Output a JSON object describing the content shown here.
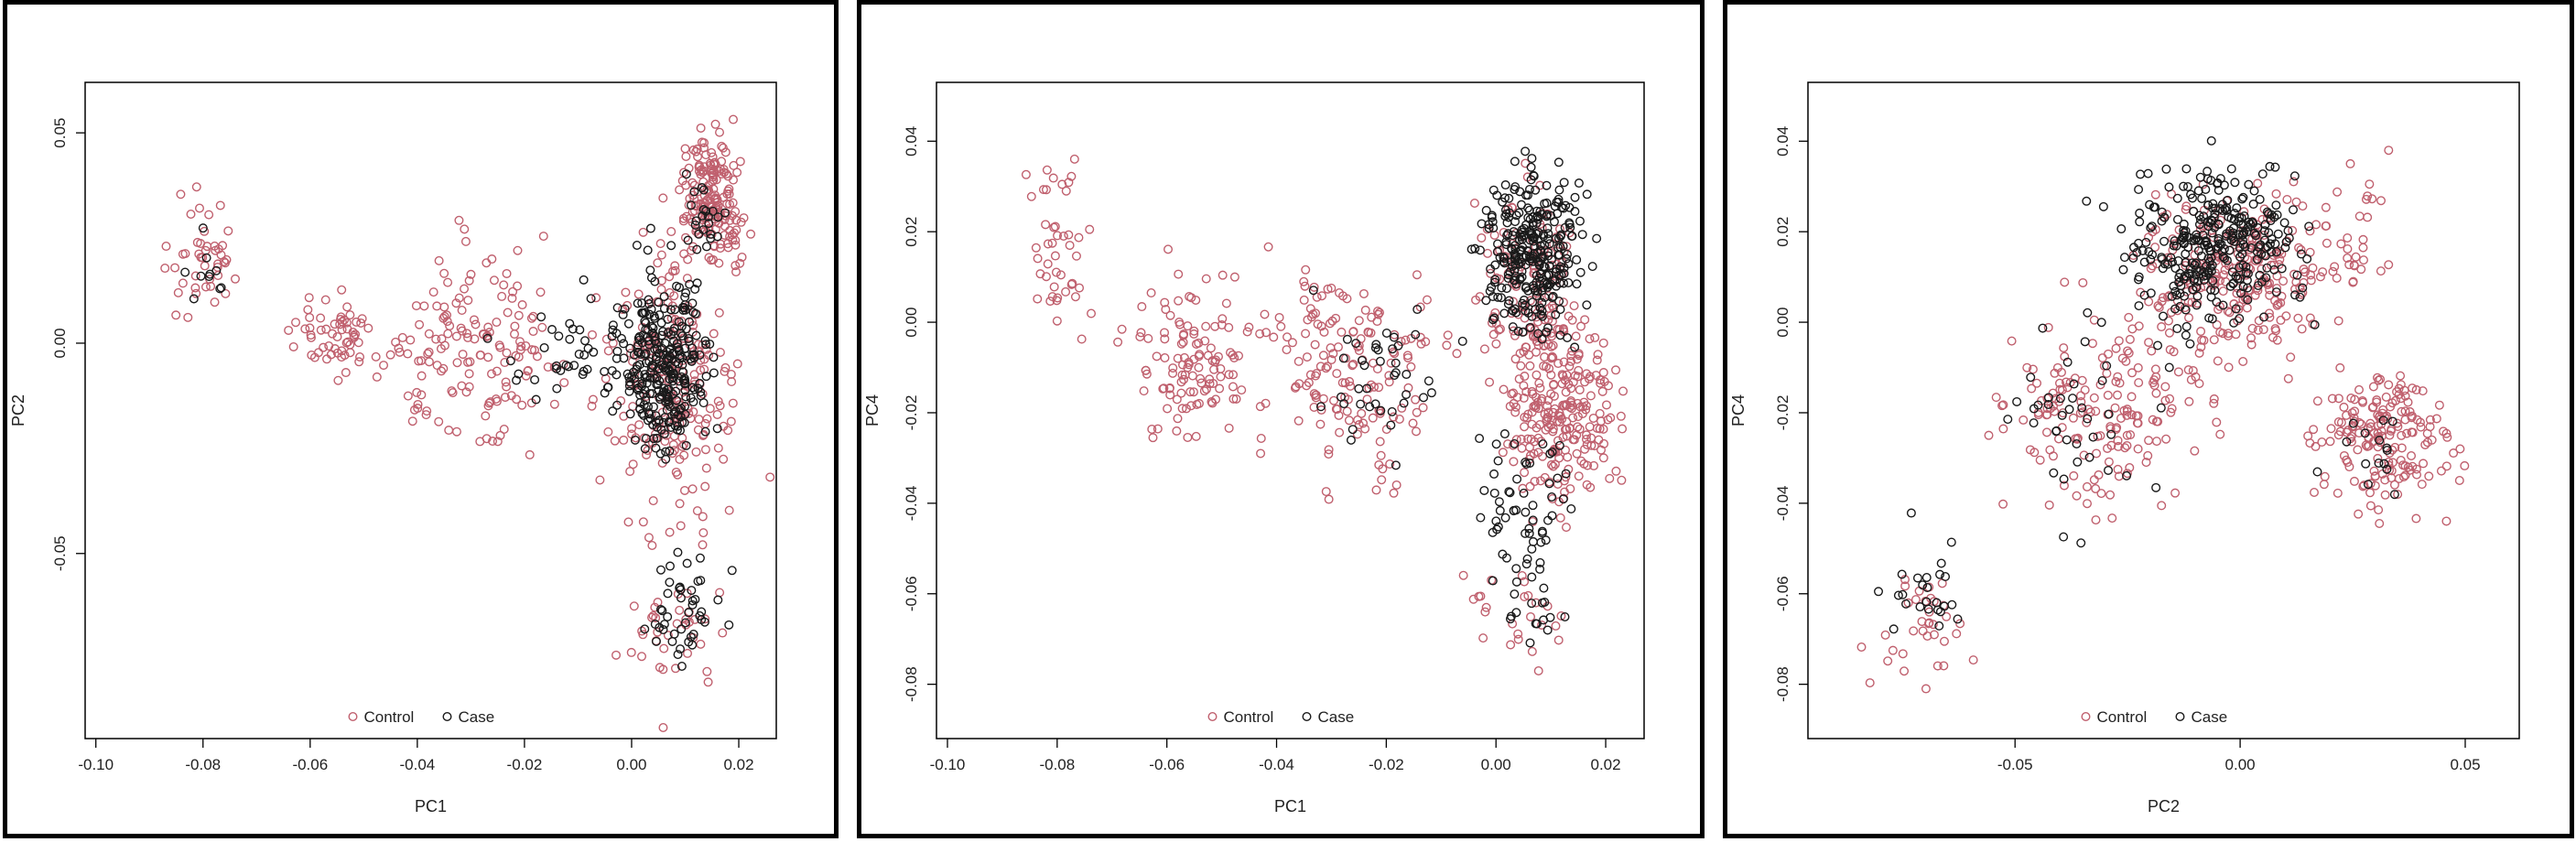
{
  "chart_data": [
    {
      "type": "scatter",
      "xlabel": "PC1",
      "ylabel": "PC2",
      "xlim": [
        -0.102,
        0.027
      ],
      "ylim": [
        -0.094,
        0.062
      ],
      "xticks": [
        -0.1,
        -0.08,
        -0.06,
        -0.04,
        -0.02,
        0.0,
        0.02
      ],
      "xtick_labels": [
        "-0.10",
        "-0.08",
        "-0.06",
        "-0.04",
        "-0.02",
        "0.00",
        "0.02"
      ],
      "yticks": [
        -0.05,
        0.0,
        0.05
      ],
      "ytick_labels": [
        "-0.05",
        "0.00",
        "0.05"
      ],
      "legend": {
        "placement": "bottom-center",
        "entries": [
          "Control",
          "Case"
        ]
      },
      "grid": false,
      "series": [
        {
          "name": "Control",
          "color": "#c0606e",
          "marker": "circle",
          "clusters": [
            {
              "cx": -0.08,
              "cy": 0.02,
              "sx": 0.005,
              "sy": 0.01,
              "n": 45
            },
            {
              "cx": -0.055,
              "cy": 0.002,
              "sx": 0.006,
              "sy": 0.006,
              "n": 60
            },
            {
              "cx": -0.03,
              "cy": -0.002,
              "sx": 0.012,
              "sy": 0.016,
              "n": 150
            },
            {
              "cx": 0.015,
              "cy": 0.035,
              "sx": 0.004,
              "sy": 0.01,
              "n": 180
            },
            {
              "cx": 0.008,
              "cy": -0.01,
              "sx": 0.008,
              "sy": 0.022,
              "n": 230
            },
            {
              "cx": 0.007,
              "cy": -0.07,
              "sx": 0.007,
              "sy": 0.01,
              "n": 35
            }
          ]
        },
        {
          "name": "Case",
          "color": "#1a1a1a",
          "marker": "circle",
          "clusters": [
            {
              "cx": 0.006,
              "cy": -0.005,
              "sx": 0.006,
              "sy": 0.015,
              "n": 290
            },
            {
              "cx": -0.01,
              "cy": -0.003,
              "sx": 0.009,
              "sy": 0.01,
              "n": 40
            },
            {
              "cx": 0.01,
              "cy": -0.065,
              "sx": 0.005,
              "sy": 0.01,
              "n": 45
            },
            {
              "cx": -0.08,
              "cy": 0.016,
              "sx": 0.003,
              "sy": 0.005,
              "n": 10
            },
            {
              "cx": 0.013,
              "cy": 0.03,
              "sx": 0.003,
              "sy": 0.008,
              "n": 25
            }
          ]
        }
      ]
    },
    {
      "type": "scatter",
      "xlabel": "PC1",
      "ylabel": "PC4",
      "xlim": [
        -0.102,
        0.027
      ],
      "ylim": [
        -0.092,
        0.053
      ],
      "xticks": [
        -0.1,
        -0.08,
        -0.06,
        -0.04,
        -0.02,
        0.0,
        0.02
      ],
      "xtick_labels": [
        "-0.10",
        "-0.08",
        "-0.06",
        "-0.04",
        "-0.02",
        "0.00",
        "0.02"
      ],
      "yticks": [
        -0.08,
        -0.06,
        -0.04,
        -0.02,
        0.0,
        0.02,
        0.04
      ],
      "ytick_labels": [
        "-0.08",
        "-0.06",
        "-0.04",
        "-0.02",
        "0.00",
        "0.02",
        "0.04"
      ],
      "legend": {
        "placement": "bottom-center",
        "entries": [
          "Control",
          "Case"
        ]
      },
      "grid": false,
      "series": [
        {
          "name": "Control",
          "color": "#c0606e",
          "marker": "circle",
          "clusters": [
            {
              "cx": -0.079,
              "cy": 0.015,
              "sx": 0.004,
              "sy": 0.014,
              "n": 45
            },
            {
              "cx": -0.055,
              "cy": -0.008,
              "sx": 0.008,
              "sy": 0.012,
              "n": 120
            },
            {
              "cx": -0.025,
              "cy": -0.01,
              "sx": 0.012,
              "sy": 0.015,
              "n": 160
            },
            {
              "cx": 0.012,
              "cy": -0.02,
              "sx": 0.007,
              "sy": 0.015,
              "n": 250
            },
            {
              "cx": 0.006,
              "cy": 0.01,
              "sx": 0.006,
              "sy": 0.015,
              "n": 120
            },
            {
              "cx": 0.005,
              "cy": -0.065,
              "sx": 0.006,
              "sy": 0.008,
              "n": 25
            }
          ]
        },
        {
          "name": "Case",
          "color": "#1a1a1a",
          "marker": "circle",
          "clusters": [
            {
              "cx": 0.007,
              "cy": 0.015,
              "sx": 0.006,
              "sy": 0.012,
              "n": 300
            },
            {
              "cx": 0.005,
              "cy": -0.04,
              "sx": 0.006,
              "sy": 0.012,
              "n": 60
            },
            {
              "cx": -0.02,
              "cy": -0.01,
              "sx": 0.01,
              "sy": 0.015,
              "n": 40
            },
            {
              "cx": 0.008,
              "cy": -0.065,
              "sx": 0.004,
              "sy": 0.006,
              "n": 15
            }
          ]
        }
      ]
    },
    {
      "type": "scatter",
      "xlabel": "PC2",
      "ylabel": "PC4",
      "xlim": [
        -0.096,
        0.062
      ],
      "ylim": [
        -0.092,
        0.053
      ],
      "xticks": [
        -0.05,
        0.0,
        0.05
      ],
      "xtick_labels": [
        "-0.05",
        "0.00",
        "0.05"
      ],
      "yticks": [
        -0.08,
        -0.06,
        -0.04,
        -0.02,
        0.0,
        0.02,
        0.04
      ],
      "ytick_labels": [
        "-0.08",
        "-0.06",
        "-0.04",
        "-0.02",
        "0.00",
        "0.02",
        "0.04"
      ],
      "legend": {
        "placement": "bottom-center",
        "entries": [
          "Control",
          "Case"
        ]
      },
      "grid": false,
      "series": [
        {
          "name": "Control",
          "color": "#c0606e",
          "marker": "circle",
          "clusters": [
            {
              "cx": 0.0,
              "cy": 0.01,
              "sx": 0.014,
              "sy": 0.014,
              "n": 250
            },
            {
              "cx": 0.032,
              "cy": -0.025,
              "sx": 0.01,
              "sy": 0.011,
              "n": 180
            },
            {
              "cx": -0.03,
              "cy": -0.02,
              "sx": 0.015,
              "sy": 0.015,
              "n": 170
            },
            {
              "cx": -0.07,
              "cy": -0.068,
              "sx": 0.008,
              "sy": 0.008,
              "n": 35
            },
            {
              "cx": 0.025,
              "cy": 0.02,
              "sx": 0.006,
              "sy": 0.01,
              "n": 30
            }
          ]
        },
        {
          "name": "Case",
          "color": "#1a1a1a",
          "marker": "circle",
          "clusters": [
            {
              "cx": -0.005,
              "cy": 0.018,
              "sx": 0.013,
              "sy": 0.012,
              "n": 320
            },
            {
              "cx": -0.04,
              "cy": -0.02,
              "sx": 0.012,
              "sy": 0.015,
              "n": 40
            },
            {
              "cx": -0.07,
              "cy": -0.06,
              "sx": 0.007,
              "sy": 0.008,
              "n": 25
            },
            {
              "cx": 0.03,
              "cy": -0.03,
              "sx": 0.006,
              "sy": 0.008,
              "n": 15
            }
          ]
        }
      ]
    }
  ]
}
